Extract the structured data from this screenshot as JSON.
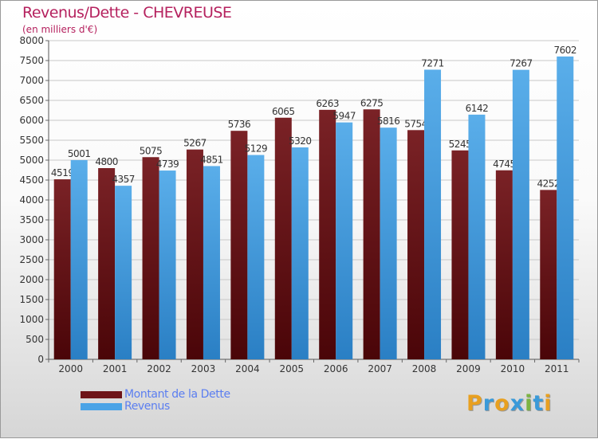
{
  "title": "Revenus/Dette - CHEVREUSE",
  "subtitle": "(en milliers d'€)",
  "legend": [
    {
      "label": "Montant de la Dette",
      "color": "#6e1418"
    },
    {
      "label": "Revenus",
      "color": "#4aa3e6"
    }
  ],
  "logo": {
    "text": "Proxiti",
    "letters": [
      "P",
      "r",
      "o",
      "x",
      "i",
      "t",
      "i"
    ],
    "colors": [
      "#e8a020",
      "#3a9ad9",
      "#e8a020",
      "#3a9ad9",
      "#7cb342",
      "#3a9ad9",
      "#e8a020"
    ]
  },
  "chart_data": {
    "type": "bar",
    "title": "Revenus/Dette - CHEVREUSE",
    "ylabel": "(en milliers d'€)",
    "xlabel": "",
    "categories": [
      "2000",
      "2001",
      "2002",
      "2003",
      "2004",
      "2005",
      "2006",
      "2007",
      "2008",
      "2009",
      "2010",
      "2011"
    ],
    "series": [
      {
        "name": "Montant de la Dette",
        "color": "#6e1418",
        "values": [
          4519,
          4800,
          5075,
          5267,
          5736,
          6065,
          6263,
          6275,
          5754,
          5245,
          4745,
          4252
        ]
      },
      {
        "name": "Revenus",
        "color": "#4aa3e6",
        "values": [
          5001,
          4357,
          4739,
          4851,
          5129,
          5320,
          5947,
          5816,
          7271,
          6142,
          7267,
          7602
        ]
      }
    ],
    "ylim": [
      0,
      8000
    ],
    "yticks": [
      0,
      500,
      1000,
      1500,
      2000,
      2500,
      3000,
      3500,
      4000,
      4500,
      5000,
      5500,
      6000,
      6500,
      7000,
      7500,
      8000
    ],
    "grid": true,
    "legend_position": "bottom-left"
  }
}
